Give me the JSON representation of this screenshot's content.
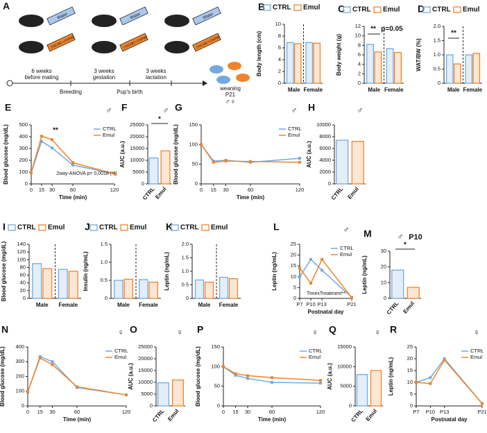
{
  "schematic": {
    "panel": "A",
    "bottles": [
      "Water",
      "1%CMC+1%P80"
    ],
    "stages": [
      [
        "6 weeks",
        "before mating"
      ],
      [
        "3 weeks",
        "gestation"
      ],
      [
        "3 weeks",
        "lactation"
      ]
    ],
    "events": [
      "Breeding",
      "Pup's birth"
    ],
    "weaning": [
      "weaning",
      "P21"
    ],
    "sex": "♂♀"
  },
  "chart_data": [
    {
      "panel": "B",
      "type": "bar",
      "ylabel": "Body length (cm)",
      "categories": [
        "Male",
        "Female"
      ],
      "series": [
        {
          "name": "CTRL",
          "color": "#74a9e0",
          "values": [
            6.9,
            6.9
          ]
        },
        {
          "name": "Emul",
          "color": "#f0842a",
          "values": [
            6.7,
            6.8
          ]
        }
      ],
      "ylim": [
        0,
        10
      ],
      "yticks": [
        0,
        2,
        4,
        6,
        8,
        10
      ],
      "legend": "top"
    },
    {
      "panel": "C",
      "type": "bar",
      "ylabel": "Body weight (g)",
      "categories": [
        "Male",
        "Female"
      ],
      "series": [
        {
          "name": "CTRL",
          "color": "#74a9e0",
          "values": [
            8.2,
            7.3
          ]
        },
        {
          "name": "Emul",
          "color": "#f0842a",
          "values": [
            6.6,
            6.5
          ]
        }
      ],
      "ylim": [
        0,
        12
      ],
      "yticks": [
        0,
        2,
        4,
        6,
        8,
        10,
        12
      ],
      "legend": "top",
      "annotations": [
        "**",
        "p=0.05"
      ]
    },
    {
      "panel": "D",
      "type": "bar",
      "ylabel": "WAT/BW (%)",
      "categories": [
        "Male",
        "Female"
      ],
      "series": [
        {
          "name": "CTRL",
          "color": "#74a9e0",
          "values": [
            1.0,
            1.0
          ]
        },
        {
          "name": "Emul",
          "color": "#f0842a",
          "values": [
            0.68,
            1.05
          ]
        }
      ],
      "ylim": [
        0,
        2
      ],
      "yticks": [
        0,
        0.5,
        {
          "value": 1,
          "label": "1.0"
        },
        1.5,
        {
          "value": 2,
          "label": "2.0"
        }
      ],
      "legend": "top",
      "annotations": [
        "**"
      ]
    },
    {
      "panel": "E",
      "type": "line",
      "sex": "♂",
      "xlabel": "Time (min)",
      "ylabel": "Blood glucose (mg/dL)",
      "x": [
        0,
        15,
        30,
        60,
        120
      ],
      "series": [
        {
          "name": "CTRL",
          "color": "#74a9e0",
          "values": [
            95,
            360,
            305,
            160,
            85
          ]
        },
        {
          "name": "Emul",
          "color": "#f0842a",
          "values": [
            95,
            405,
            375,
            180,
            85
          ]
        }
      ],
      "xlim": [
        0,
        120
      ],
      "xticks": [
        0,
        15,
        30,
        60,
        120
      ],
      "ylim": [
        0,
        500
      ],
      "yticks": [
        0,
        100,
        200,
        300,
        400,
        500
      ],
      "legend": "upper right",
      "annotations": [
        "**",
        "2way-ANOVA  p= 0,0018 (**)"
      ]
    },
    {
      "panel": "F",
      "type": "bar",
      "sex": "♂",
      "ylabel": "AUC (a.u.)",
      "categories": [
        "CTRL",
        "Emul"
      ],
      "values": [
        11000,
        14000
      ],
      "colors": [
        "#74a9e0",
        "#f0842a"
      ],
      "ylim": [
        0,
        25000
      ],
      "yticks": [
        0,
        5000,
        10000,
        15000,
        20000,
        25000
      ],
      "annotations": [
        "*"
      ]
    },
    {
      "panel": "G",
      "type": "line",
      "sex": "♂",
      "xlabel": "Time (min)",
      "ylabel": "Blood glucose (mg/dL)",
      "x": [
        0,
        15,
        30,
        60,
        120
      ],
      "series": [
        {
          "name": "CTRL",
          "color": "#74a9e0",
          "values": [
            100,
            58,
            60,
            55,
            65
          ]
        },
        {
          "name": "Emul",
          "color": "#f0842a",
          "values": [
            100,
            55,
            58,
            57,
            55
          ]
        }
      ],
      "xlim": [
        0,
        120
      ],
      "xticks": [
        0,
        15,
        30,
        60,
        120
      ],
      "ylim": [
        0,
        150
      ],
      "yticks": [
        0,
        50,
        100,
        150
      ],
      "legend": "upper right"
    },
    {
      "panel": "H",
      "type": "bar",
      "sex": "♂",
      "ylabel": "AUC (a.u.)",
      "categories": [
        "CTRL",
        "Emul"
      ],
      "values": [
        7400,
        7200
      ],
      "colors": [
        "#74a9e0",
        "#f0842a"
      ],
      "ylim": [
        0,
        10000
      ],
      "yticks": [
        0,
        2000,
        4000,
        6000,
        8000,
        10000
      ]
    },
    {
      "panel": "I",
      "type": "bar",
      "ylabel": "Blood glucose (mg/dL)",
      "categories": [
        "Male",
        "Female"
      ],
      "series": [
        {
          "name": "CTRL",
          "color": "#74a9e0",
          "values": [
            90,
            75
          ]
        },
        {
          "name": "Emul",
          "color": "#f0842a",
          "values": [
            77,
            70
          ]
        }
      ],
      "ylim": [
        0,
        140
      ],
      "yticks": [
        0,
        20,
        40,
        60,
        80,
        100,
        120,
        140
      ],
      "legend": "top"
    },
    {
      "panel": "J",
      "type": "bar",
      "ylabel": "Insulin (ng/mL)",
      "categories": [
        "Male",
        "Female"
      ],
      "series": [
        {
          "name": "CTRL",
          "color": "#74a9e0",
          "values": [
            0.5,
            0.52
          ]
        },
        {
          "name": "Emul",
          "color": "#f0842a",
          "values": [
            0.53,
            0.45
          ]
        }
      ],
      "ylim": [
        0,
        1.5
      ],
      "yticks": [
        0,
        0.5,
        {
          "value": 1,
          "label": "1.0"
        },
        1.5
      ],
      "legend": "top"
    },
    {
      "panel": "K",
      "type": "bar",
      "ylabel": "Leptin (ng/mL)",
      "categories": [
        "Male",
        "Female"
      ],
      "series": [
        {
          "name": "CTRL",
          "color": "#74a9e0",
          "values": [
            0.68,
            0.78
          ]
        },
        {
          "name": "Emul",
          "color": "#f0842a",
          "values": [
            0.6,
            0.73
          ]
        }
      ],
      "ylim": [
        0,
        2
      ],
      "yticks": [
        0,
        0.5,
        {
          "value": 1,
          "label": "1.0"
        },
        1.5,
        {
          "value": 2,
          "label": "2.0"
        }
      ],
      "legend": "top"
    },
    {
      "panel": "L",
      "type": "line",
      "sex": "♂",
      "xlabel": "Postnatal day",
      "ylabel": "Leptin (ng/mL)",
      "x": [
        7,
        10,
        13,
        21
      ],
      "series": [
        {
          "name": "CTRL",
          "color": "#74a9e0",
          "values": [
            10,
            18,
            13,
            0.5
          ]
        },
        {
          "name": "Emul",
          "color": "#f0842a",
          "values": [
            14,
            7,
            18,
            0.3
          ]
        }
      ],
      "xlim": [
        7,
        21
      ],
      "xticks": [
        {
          "value": 7,
          "label": "P7"
        },
        {
          "value": 10,
          "label": "P10"
        },
        {
          "value": 13,
          "label": "P13"
        },
        {
          "value": 21,
          "label": "P21"
        }
      ],
      "ylim": [
        0,
        25
      ],
      "yticks": [
        0,
        5,
        10,
        15,
        20,
        25
      ],
      "legend": "upper right",
      "annotations": [
        "TimexTreatment**"
      ]
    },
    {
      "panel": "M",
      "type": "bar",
      "sex": "♂",
      "title": "P10",
      "ylabel": "Leptin (ng/mL)",
      "categories": [
        "CTRL",
        "Emul"
      ],
      "values": [
        18,
        7
      ],
      "colors": [
        "#74a9e0",
        "#f0842a"
      ],
      "ylim": [
        0,
        30
      ],
      "yticks": [
        0,
        10,
        20,
        30
      ],
      "annotations": [
        "*"
      ]
    },
    {
      "panel": "N",
      "type": "line",
      "sex": "♀",
      "xlabel": "Time (min)",
      "ylabel": "Blood glucose (mg/dL)",
      "x": [
        0,
        15,
        30,
        60,
        120
      ],
      "series": [
        {
          "name": "CTRL",
          "color": "#74a9e0",
          "values": [
            95,
            335,
            300,
            125,
            75
          ]
        },
        {
          "name": "Emul",
          "color": "#f0842a",
          "values": [
            95,
            325,
            280,
            130,
            75
          ]
        }
      ],
      "xlim": [
        0,
        120
      ],
      "xticks": [
        0,
        15,
        30,
        60,
        120
      ],
      "ylim": [
        0,
        400
      ],
      "yticks": [
        0,
        100,
        200,
        300,
        400
      ],
      "legend": "upper right"
    },
    {
      "panel": "O",
      "type": "bar",
      "sex": "♀",
      "ylabel": "AUC (a.u.)",
      "categories": [
        "CTRL",
        "Emul"
      ],
      "values": [
        9800,
        11000
      ],
      "colors": [
        "#74a9e0",
        "#f0842a"
      ],
      "ylim": [
        0,
        25000
      ],
      "yticks": [
        0,
        5000,
        10000,
        15000,
        20000,
        25000
      ]
    },
    {
      "panel": "P",
      "type": "line",
      "sex": "♀",
      "xlabel": "Time (min)",
      "ylabel": "Blood glucose (mg/dL)",
      "x": [
        0,
        15,
        30,
        60,
        120
      ],
      "series": [
        {
          "name": "CTRL",
          "color": "#74a9e0",
          "values": [
            100,
            78,
            70,
            60,
            58
          ]
        },
        {
          "name": "Emul",
          "color": "#f0842a",
          "values": [
            100,
            82,
            77,
            72,
            65
          ]
        }
      ],
      "xlim": [
        0,
        120
      ],
      "xticks": [
        0,
        15,
        30,
        60,
        120
      ],
      "ylim": [
        0,
        150
      ],
      "yticks": [
        0,
        50,
        100,
        150
      ],
      "legend": "upper right"
    },
    {
      "panel": "Q",
      "type": "bar",
      "sex": "♀",
      "ylabel": "AUC (a.u.)",
      "categories": [
        "CTRL",
        "Emul"
      ],
      "values": [
        8000,
        9000
      ],
      "colors": [
        "#74a9e0",
        "#f0842a"
      ],
      "ylim": [
        0,
        15000
      ],
      "yticks": [
        0,
        5000,
        10000,
        15000
      ]
    },
    {
      "panel": "R",
      "type": "line",
      "sex": "♀",
      "xlabel": "Postnatal day",
      "ylabel": "Leptin (ng/mL)",
      "x": [
        7,
        10,
        13,
        21
      ],
      "series": [
        {
          "name": "CTRL",
          "color": "#74a9e0",
          "values": [
            10,
            12,
            20,
            1
          ]
        },
        {
          "name": "Emul",
          "color": "#f0842a",
          "values": [
            10,
            9.5,
            19.5,
            1
          ]
        }
      ],
      "xlim": [
        7,
        21
      ],
      "xticks": [
        {
          "value": 7,
          "label": "P7"
        },
        {
          "value": 10,
          "label": "P10"
        },
        {
          "value": 13,
          "label": "P13"
        },
        {
          "value": 21,
          "label": "P21"
        }
      ],
      "ylim": [
        0,
        25
      ],
      "yticks": [
        0,
        5,
        10,
        15,
        20,
        25
      ],
      "legend": "upper right"
    }
  ]
}
